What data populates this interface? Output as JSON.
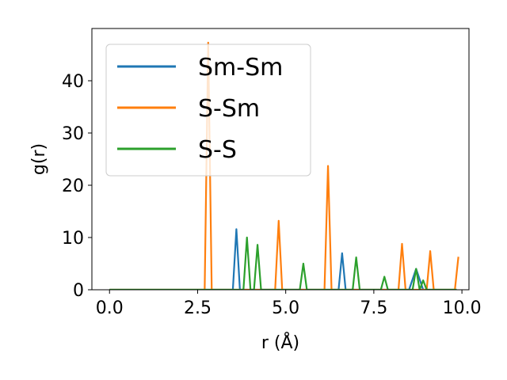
{
  "chart_data": {
    "type": "line",
    "xlabel": "r (Å)",
    "ylabel": "g(r)",
    "xlim": [
      -0.5,
      10.2
    ],
    "ylim": [
      0,
      50
    ],
    "xticks": [
      0.0,
      2.5,
      5.0,
      7.5,
      10.0
    ],
    "xtick_labels": [
      "0.0",
      "2.5",
      "5.0",
      "7.5",
      "10.0"
    ],
    "yticks": [
      0,
      10,
      20,
      30,
      40
    ],
    "ytick_labels": [
      "0",
      "10",
      "20",
      "30",
      "40"
    ],
    "grid": false,
    "legend_position": "upper-left",
    "series": [
      {
        "name": "Sm-Sm",
        "color": "#1f77b4",
        "x": [
          0.0,
          3.5,
          3.6,
          3.7,
          6.5,
          6.6,
          6.7,
          8.5,
          8.7,
          8.9,
          9.85
        ],
        "y": [
          0,
          0,
          11.6,
          0,
          0,
          7.0,
          0,
          0,
          4.0,
          0,
          0
        ]
      },
      {
        "name": "S-Sm",
        "color": "#ff7f0e",
        "x": [
          0.0,
          2.7,
          2.8,
          2.9,
          4.7,
          4.8,
          4.9,
          6.1,
          6.2,
          6.3,
          8.2,
          8.3,
          8.4,
          9.0,
          9.1,
          9.2,
          9.8,
          9.9
        ],
        "y": [
          0,
          0,
          47.3,
          0,
          0,
          13.2,
          0,
          0,
          23.7,
          0,
          0,
          8.8,
          0,
          0,
          7.4,
          0,
          0,
          6.3
        ]
      },
      {
        "name": "S-S",
        "color": "#2ca02c",
        "x": [
          0.0,
          3.8,
          3.9,
          4.0,
          4.1,
          4.2,
          4.3,
          5.4,
          5.5,
          5.6,
          6.9,
          7.0,
          7.1,
          7.7,
          7.8,
          7.9,
          8.6,
          8.7,
          8.8,
          8.9,
          9.0,
          9.85
        ],
        "y": [
          0,
          0,
          10.0,
          0,
          0,
          8.6,
          0,
          0,
          5.0,
          0,
          0,
          6.2,
          0,
          0,
          2.5,
          0,
          0,
          4.0,
          0,
          1.8,
          0,
          0
        ]
      }
    ]
  }
}
